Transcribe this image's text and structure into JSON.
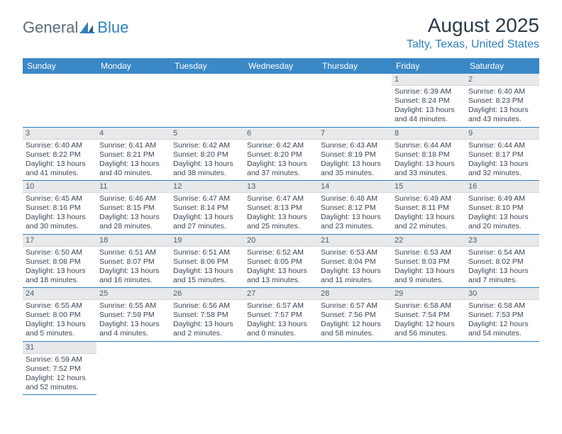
{
  "logo": {
    "part1": "General",
    "part2": "Blue"
  },
  "title": "August 2025",
  "location": "Talty, Texas, United States",
  "weekdays": [
    "Sunday",
    "Monday",
    "Tuesday",
    "Wednesday",
    "Thursday",
    "Friday",
    "Saturday"
  ],
  "colors": {
    "header_bg": "#3a88c6",
    "header_text": "#ffffff",
    "daynum_bg": "#e7e9eb",
    "border": "#2f7fbf",
    "title_color": "#2b3a49",
    "location_color": "#2f7fbf",
    "logo_gray": "#5c6c7a",
    "logo_blue": "#2f7fbf"
  },
  "grid": {
    "columns": 7,
    "rows": 6,
    "first_weekday_index": 5,
    "days_in_month": 31
  },
  "days": [
    {
      "n": "1",
      "sr": "Sunrise: 6:39 AM",
      "ss": "Sunset: 8:24 PM",
      "dl": "Daylight: 13 hours and 44 minutes."
    },
    {
      "n": "2",
      "sr": "Sunrise: 6:40 AM",
      "ss": "Sunset: 8:23 PM",
      "dl": "Daylight: 13 hours and 43 minutes."
    },
    {
      "n": "3",
      "sr": "Sunrise: 6:40 AM",
      "ss": "Sunset: 8:22 PM",
      "dl": "Daylight: 13 hours and 41 minutes."
    },
    {
      "n": "4",
      "sr": "Sunrise: 6:41 AM",
      "ss": "Sunset: 8:21 PM",
      "dl": "Daylight: 13 hours and 40 minutes."
    },
    {
      "n": "5",
      "sr": "Sunrise: 6:42 AM",
      "ss": "Sunset: 8:20 PM",
      "dl": "Daylight: 13 hours and 38 minutes."
    },
    {
      "n": "6",
      "sr": "Sunrise: 6:42 AM",
      "ss": "Sunset: 8:20 PM",
      "dl": "Daylight: 13 hours and 37 minutes."
    },
    {
      "n": "7",
      "sr": "Sunrise: 6:43 AM",
      "ss": "Sunset: 8:19 PM",
      "dl": "Daylight: 13 hours and 35 minutes."
    },
    {
      "n": "8",
      "sr": "Sunrise: 6:44 AM",
      "ss": "Sunset: 8:18 PM",
      "dl": "Daylight: 13 hours and 33 minutes."
    },
    {
      "n": "9",
      "sr": "Sunrise: 6:44 AM",
      "ss": "Sunset: 8:17 PM",
      "dl": "Daylight: 13 hours and 32 minutes."
    },
    {
      "n": "10",
      "sr": "Sunrise: 6:45 AM",
      "ss": "Sunset: 8:16 PM",
      "dl": "Daylight: 13 hours and 30 minutes."
    },
    {
      "n": "11",
      "sr": "Sunrise: 6:46 AM",
      "ss": "Sunset: 8:15 PM",
      "dl": "Daylight: 13 hours and 28 minutes."
    },
    {
      "n": "12",
      "sr": "Sunrise: 6:47 AM",
      "ss": "Sunset: 8:14 PM",
      "dl": "Daylight: 13 hours and 27 minutes."
    },
    {
      "n": "13",
      "sr": "Sunrise: 6:47 AM",
      "ss": "Sunset: 8:13 PM",
      "dl": "Daylight: 13 hours and 25 minutes."
    },
    {
      "n": "14",
      "sr": "Sunrise: 6:48 AM",
      "ss": "Sunset: 8:12 PM",
      "dl": "Daylight: 13 hours and 23 minutes."
    },
    {
      "n": "15",
      "sr": "Sunrise: 6:49 AM",
      "ss": "Sunset: 8:11 PM",
      "dl": "Daylight: 13 hours and 22 minutes."
    },
    {
      "n": "16",
      "sr": "Sunrise: 6:49 AM",
      "ss": "Sunset: 8:10 PM",
      "dl": "Daylight: 13 hours and 20 minutes."
    },
    {
      "n": "17",
      "sr": "Sunrise: 6:50 AM",
      "ss": "Sunset: 8:08 PM",
      "dl": "Daylight: 13 hours and 18 minutes."
    },
    {
      "n": "18",
      "sr": "Sunrise: 6:51 AM",
      "ss": "Sunset: 8:07 PM",
      "dl": "Daylight: 13 hours and 16 minutes."
    },
    {
      "n": "19",
      "sr": "Sunrise: 6:51 AM",
      "ss": "Sunset: 8:06 PM",
      "dl": "Daylight: 13 hours and 15 minutes."
    },
    {
      "n": "20",
      "sr": "Sunrise: 6:52 AM",
      "ss": "Sunset: 8:05 PM",
      "dl": "Daylight: 13 hours and 13 minutes."
    },
    {
      "n": "21",
      "sr": "Sunrise: 6:53 AM",
      "ss": "Sunset: 8:04 PM",
      "dl": "Daylight: 13 hours and 11 minutes."
    },
    {
      "n": "22",
      "sr": "Sunrise: 6:53 AM",
      "ss": "Sunset: 8:03 PM",
      "dl": "Daylight: 13 hours and 9 minutes."
    },
    {
      "n": "23",
      "sr": "Sunrise: 6:54 AM",
      "ss": "Sunset: 8:02 PM",
      "dl": "Daylight: 13 hours and 7 minutes."
    },
    {
      "n": "24",
      "sr": "Sunrise: 6:55 AM",
      "ss": "Sunset: 8:00 PM",
      "dl": "Daylight: 13 hours and 5 minutes."
    },
    {
      "n": "25",
      "sr": "Sunrise: 6:55 AM",
      "ss": "Sunset: 7:59 PM",
      "dl": "Daylight: 13 hours and 4 minutes."
    },
    {
      "n": "26",
      "sr": "Sunrise: 6:56 AM",
      "ss": "Sunset: 7:58 PM",
      "dl": "Daylight: 13 hours and 2 minutes."
    },
    {
      "n": "27",
      "sr": "Sunrise: 6:57 AM",
      "ss": "Sunset: 7:57 PM",
      "dl": "Daylight: 13 hours and 0 minutes."
    },
    {
      "n": "28",
      "sr": "Sunrise: 6:57 AM",
      "ss": "Sunset: 7:56 PM",
      "dl": "Daylight: 12 hours and 58 minutes."
    },
    {
      "n": "29",
      "sr": "Sunrise: 6:58 AM",
      "ss": "Sunset: 7:54 PM",
      "dl": "Daylight: 12 hours and 56 minutes."
    },
    {
      "n": "30",
      "sr": "Sunrise: 6:58 AM",
      "ss": "Sunset: 7:53 PM",
      "dl": "Daylight: 12 hours and 54 minutes."
    },
    {
      "n": "31",
      "sr": "Sunrise: 6:59 AM",
      "ss": "Sunset: 7:52 PM",
      "dl": "Daylight: 12 hours and 52 minutes."
    }
  ]
}
